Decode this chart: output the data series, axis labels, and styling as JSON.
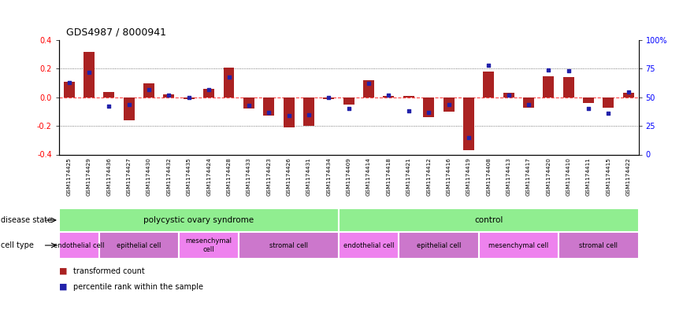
{
  "title": "GDS4987 / 8000941",
  "samples": [
    "GSM1174425",
    "GSM1174429",
    "GSM1174436",
    "GSM1174427",
    "GSM1174430",
    "GSM1174432",
    "GSM1174435",
    "GSM1174424",
    "GSM1174428",
    "GSM1174433",
    "GSM1174423",
    "GSM1174426",
    "GSM1174431",
    "GSM1174434",
    "GSM1174409",
    "GSM1174414",
    "GSM1174418",
    "GSM1174421",
    "GSM1174412",
    "GSM1174416",
    "GSM1174419",
    "GSM1174408",
    "GSM1174413",
    "GSM1174417",
    "GSM1174420",
    "GSM1174410",
    "GSM1174411",
    "GSM1174415",
    "GSM1174422"
  ],
  "transformed_count": [
    0.11,
    0.32,
    0.04,
    -0.16,
    0.1,
    0.02,
    -0.01,
    0.06,
    0.21,
    -0.08,
    -0.13,
    -0.21,
    -0.2,
    -0.01,
    -0.05,
    0.12,
    0.01,
    0.01,
    -0.14,
    -0.1,
    -0.37,
    0.18,
    0.03,
    -0.07,
    0.15,
    0.14,
    -0.04,
    -0.07,
    0.03
  ],
  "percentile_rank": [
    63,
    72,
    42,
    44,
    57,
    52,
    50,
    57,
    68,
    43,
    37,
    34,
    35,
    50,
    40,
    62,
    52,
    38,
    37,
    44,
    15,
    78,
    52,
    44,
    74,
    73,
    40,
    36,
    55
  ],
  "ylim": [
    -0.4,
    0.4
  ],
  "yticks_left": [
    -0.4,
    -0.2,
    0.0,
    0.2,
    0.4
  ],
  "yticks_right": [
    0,
    25,
    50,
    75,
    100
  ],
  "disease_state_groups": [
    {
      "label": "polycystic ovary syndrome",
      "start": 0,
      "end": 14,
      "color": "#90EE90"
    },
    {
      "label": "control",
      "start": 14,
      "end": 29,
      "color": "#90EE90"
    }
  ],
  "cell_type_groups": [
    {
      "label": "endothelial cell",
      "start": 0,
      "end": 2,
      "color": "#EE82EE"
    },
    {
      "label": "epithelial cell",
      "start": 2,
      "end": 6,
      "color": "#CC77CC"
    },
    {
      "label": "mesenchymal\ncell",
      "start": 6,
      "end": 9,
      "color": "#EE82EE"
    },
    {
      "label": "stromal cell",
      "start": 9,
      "end": 14,
      "color": "#CC77CC"
    },
    {
      "label": "endothelial cell",
      "start": 14,
      "end": 17,
      "color": "#EE82EE"
    },
    {
      "label": "epithelial cell",
      "start": 17,
      "end": 21,
      "color": "#CC77CC"
    },
    {
      "label": "mesenchymal cell",
      "start": 21,
      "end": 25,
      "color": "#EE82EE"
    },
    {
      "label": "stromal cell",
      "start": 25,
      "end": 29,
      "color": "#CC77CC"
    }
  ],
  "bar_color": "#AA2222",
  "dot_color": "#2222AA",
  "zero_line_color": "#FF4444",
  "dotted_line_color": "#555555",
  "background_color": "#FFFFFF",
  "tick_bg_color": "#DDDDDD",
  "label_disease": "disease state",
  "label_cell": "cell type",
  "legend_transformed": "transformed count",
  "legend_percentile": "percentile rank within the sample"
}
